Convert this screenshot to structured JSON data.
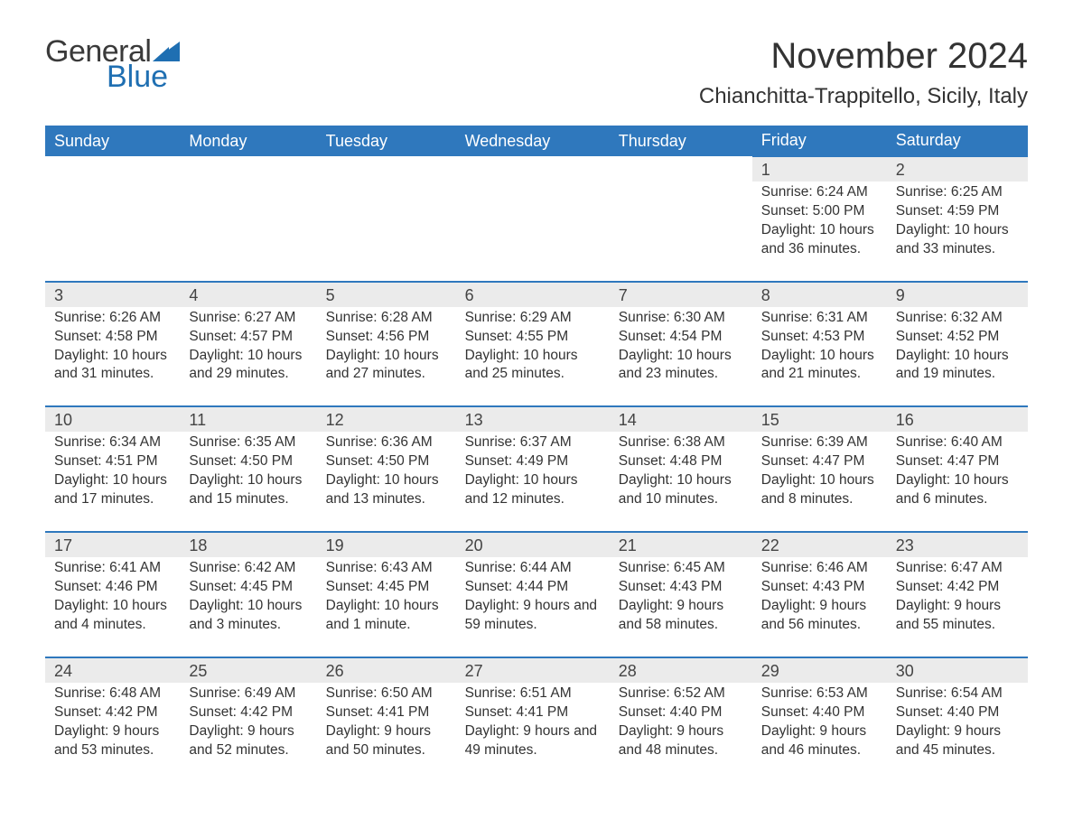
{
  "logo": {
    "text_general": "General",
    "text_blue": "Blue",
    "color_general": "#3a3a3a",
    "color_blue": "#1f6fb2",
    "sail_color": "#1f6fb2"
  },
  "header": {
    "month_title": "November 2024",
    "location": "Chianchitta-Trappitello, Sicily, Italy",
    "title_color": "#333333"
  },
  "style": {
    "header_bg": "#2f78bd",
    "header_text": "#ffffff",
    "daynum_bg": "#ebebeb",
    "border_color": "#2f78bd",
    "body_text": "#333333",
    "font_family": "Segoe UI, Arial, sans-serif"
  },
  "days_of_week": [
    "Sunday",
    "Monday",
    "Tuesday",
    "Wednesday",
    "Thursday",
    "Friday",
    "Saturday"
  ],
  "weeks": [
    [
      null,
      null,
      null,
      null,
      null,
      {
        "n": "1",
        "sr": "Sunrise: 6:24 AM",
        "ss": "Sunset: 5:00 PM",
        "dl": "Daylight: 10 hours and 36 minutes."
      },
      {
        "n": "2",
        "sr": "Sunrise: 6:25 AM",
        "ss": "Sunset: 4:59 PM",
        "dl": "Daylight: 10 hours and 33 minutes."
      }
    ],
    [
      {
        "n": "3",
        "sr": "Sunrise: 6:26 AM",
        "ss": "Sunset: 4:58 PM",
        "dl": "Daylight: 10 hours and 31 minutes."
      },
      {
        "n": "4",
        "sr": "Sunrise: 6:27 AM",
        "ss": "Sunset: 4:57 PM",
        "dl": "Daylight: 10 hours and 29 minutes."
      },
      {
        "n": "5",
        "sr": "Sunrise: 6:28 AM",
        "ss": "Sunset: 4:56 PM",
        "dl": "Daylight: 10 hours and 27 minutes."
      },
      {
        "n": "6",
        "sr": "Sunrise: 6:29 AM",
        "ss": "Sunset: 4:55 PM",
        "dl": "Daylight: 10 hours and 25 minutes."
      },
      {
        "n": "7",
        "sr": "Sunrise: 6:30 AM",
        "ss": "Sunset: 4:54 PM",
        "dl": "Daylight: 10 hours and 23 minutes."
      },
      {
        "n": "8",
        "sr": "Sunrise: 6:31 AM",
        "ss": "Sunset: 4:53 PM",
        "dl": "Daylight: 10 hours and 21 minutes."
      },
      {
        "n": "9",
        "sr": "Sunrise: 6:32 AM",
        "ss": "Sunset: 4:52 PM",
        "dl": "Daylight: 10 hours and 19 minutes."
      }
    ],
    [
      {
        "n": "10",
        "sr": "Sunrise: 6:34 AM",
        "ss": "Sunset: 4:51 PM",
        "dl": "Daylight: 10 hours and 17 minutes."
      },
      {
        "n": "11",
        "sr": "Sunrise: 6:35 AM",
        "ss": "Sunset: 4:50 PM",
        "dl": "Daylight: 10 hours and 15 minutes."
      },
      {
        "n": "12",
        "sr": "Sunrise: 6:36 AM",
        "ss": "Sunset: 4:50 PM",
        "dl": "Daylight: 10 hours and 13 minutes."
      },
      {
        "n": "13",
        "sr": "Sunrise: 6:37 AM",
        "ss": "Sunset: 4:49 PM",
        "dl": "Daylight: 10 hours and 12 minutes."
      },
      {
        "n": "14",
        "sr": "Sunrise: 6:38 AM",
        "ss": "Sunset: 4:48 PM",
        "dl": "Daylight: 10 hours and 10 minutes."
      },
      {
        "n": "15",
        "sr": "Sunrise: 6:39 AM",
        "ss": "Sunset: 4:47 PM",
        "dl": "Daylight: 10 hours and 8 minutes."
      },
      {
        "n": "16",
        "sr": "Sunrise: 6:40 AM",
        "ss": "Sunset: 4:47 PM",
        "dl": "Daylight: 10 hours and 6 minutes."
      }
    ],
    [
      {
        "n": "17",
        "sr": "Sunrise: 6:41 AM",
        "ss": "Sunset: 4:46 PM",
        "dl": "Daylight: 10 hours and 4 minutes."
      },
      {
        "n": "18",
        "sr": "Sunrise: 6:42 AM",
        "ss": "Sunset: 4:45 PM",
        "dl": "Daylight: 10 hours and 3 minutes."
      },
      {
        "n": "19",
        "sr": "Sunrise: 6:43 AM",
        "ss": "Sunset: 4:45 PM",
        "dl": "Daylight: 10 hours and 1 minute."
      },
      {
        "n": "20",
        "sr": "Sunrise: 6:44 AM",
        "ss": "Sunset: 4:44 PM",
        "dl": "Daylight: 9 hours and 59 minutes."
      },
      {
        "n": "21",
        "sr": "Sunrise: 6:45 AM",
        "ss": "Sunset: 4:43 PM",
        "dl": "Daylight: 9 hours and 58 minutes."
      },
      {
        "n": "22",
        "sr": "Sunrise: 6:46 AM",
        "ss": "Sunset: 4:43 PM",
        "dl": "Daylight: 9 hours and 56 minutes."
      },
      {
        "n": "23",
        "sr": "Sunrise: 6:47 AM",
        "ss": "Sunset: 4:42 PM",
        "dl": "Daylight: 9 hours and 55 minutes."
      }
    ],
    [
      {
        "n": "24",
        "sr": "Sunrise: 6:48 AM",
        "ss": "Sunset: 4:42 PM",
        "dl": "Daylight: 9 hours and 53 minutes."
      },
      {
        "n": "25",
        "sr": "Sunrise: 6:49 AM",
        "ss": "Sunset: 4:42 PM",
        "dl": "Daylight: 9 hours and 52 minutes."
      },
      {
        "n": "26",
        "sr": "Sunrise: 6:50 AM",
        "ss": "Sunset: 4:41 PM",
        "dl": "Daylight: 9 hours and 50 minutes."
      },
      {
        "n": "27",
        "sr": "Sunrise: 6:51 AM",
        "ss": "Sunset: 4:41 PM",
        "dl": "Daylight: 9 hours and 49 minutes."
      },
      {
        "n": "28",
        "sr": "Sunrise: 6:52 AM",
        "ss": "Sunset: 4:40 PM",
        "dl": "Daylight: 9 hours and 48 minutes."
      },
      {
        "n": "29",
        "sr": "Sunrise: 6:53 AM",
        "ss": "Sunset: 4:40 PM",
        "dl": "Daylight: 9 hours and 46 minutes."
      },
      {
        "n": "30",
        "sr": "Sunrise: 6:54 AM",
        "ss": "Sunset: 4:40 PM",
        "dl": "Daylight: 9 hours and 45 minutes."
      }
    ]
  ]
}
